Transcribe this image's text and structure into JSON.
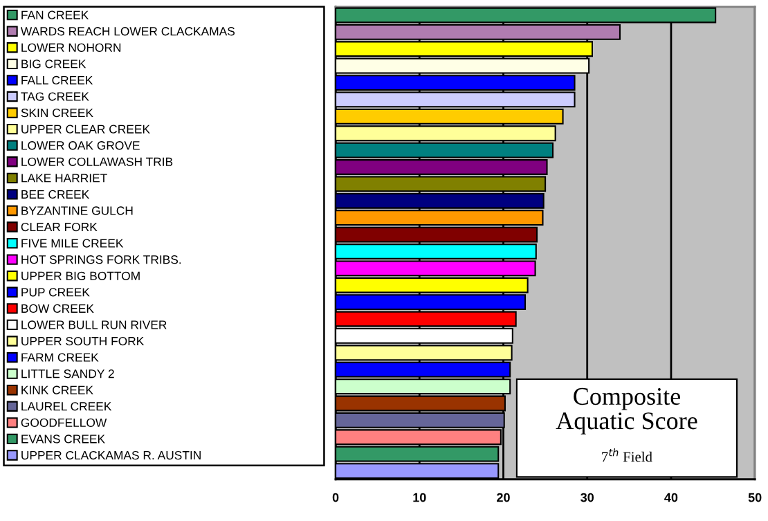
{
  "chart_data": {
    "type": "bar",
    "orientation": "horizontal",
    "title": "Composite Aquatic Score",
    "subtitle": "7$^{th}$ Field",
    "categories": [
      null,
      null,
      null,
      null,
      null,
      null,
      null,
      null,
      null,
      null,
      null,
      null,
      null,
      null,
      null,
      null,
      null,
      null,
      null,
      null,
      null,
      null,
      null,
      null,
      null,
      null,
      null,
      null
    ],
    "series": [
      {
        "name": "FAN CREEK",
        "color": "#339966",
        "values": [
          45.3,
          null,
          null,
          null,
          null,
          null,
          null,
          null,
          null,
          null,
          null,
          null,
          null,
          null,
          null,
          null,
          null,
          null,
          null,
          null,
          null,
          null,
          null,
          null,
          null,
          null,
          null,
          null
        ]
      },
      {
        "name": "WARDS REACH LOWER CLACKAMAS",
        "color": "#b07cb0",
        "values": [
          null,
          33.9,
          null,
          null,
          null,
          null,
          null,
          null,
          null,
          null,
          null,
          null,
          null,
          null,
          null,
          null,
          null,
          null,
          null,
          null,
          null,
          null,
          null,
          null,
          null,
          null,
          null,
          null
        ]
      },
      {
        "name": "LOWER NOHORN",
        "color": "#ffff00",
        "values": [
          null,
          null,
          30.6,
          null,
          null,
          null,
          null,
          null,
          null,
          null,
          null,
          null,
          null,
          null,
          null,
          null,
          null,
          null,
          null,
          null,
          null,
          null,
          null,
          null,
          null,
          null,
          null,
          null
        ]
      },
      {
        "name": "BIG CREEK",
        "color": "#ffffe6",
        "values": [
          null,
          null,
          null,
          30.2,
          null,
          null,
          null,
          null,
          null,
          null,
          null,
          null,
          null,
          null,
          null,
          null,
          null,
          null,
          null,
          null,
          null,
          null,
          null,
          null,
          null,
          null,
          null,
          null
        ]
      },
      {
        "name": "FALL CREEK",
        "color": "#0000ff",
        "values": [
          null,
          null,
          null,
          null,
          28.5,
          null,
          null,
          null,
          null,
          null,
          null,
          null,
          null,
          null,
          null,
          null,
          null,
          null,
          null,
          null,
          null,
          null,
          null,
          null,
          null,
          null,
          null,
          null
        ]
      },
      {
        "name": "TAG CREEK",
        "color": "#ccccff",
        "values": [
          null,
          null,
          null,
          null,
          null,
          28.5,
          null,
          null,
          null,
          null,
          null,
          null,
          null,
          null,
          null,
          null,
          null,
          null,
          null,
          null,
          null,
          null,
          null,
          null,
          null,
          null,
          null,
          null
        ]
      },
      {
        "name": "SKIN CREEK",
        "color": "#ffcc00",
        "values": [
          null,
          null,
          null,
          null,
          null,
          null,
          27.1,
          null,
          null,
          null,
          null,
          null,
          null,
          null,
          null,
          null,
          null,
          null,
          null,
          null,
          null,
          null,
          null,
          null,
          null,
          null,
          null,
          null
        ]
      },
      {
        "name": "UPPER CLEAR CREEK",
        "color": "#ffff99",
        "values": [
          null,
          null,
          null,
          null,
          null,
          null,
          null,
          26.2,
          null,
          null,
          null,
          null,
          null,
          null,
          null,
          null,
          null,
          null,
          null,
          null,
          null,
          null,
          null,
          null,
          null,
          null,
          null,
          null
        ]
      },
      {
        "name": "LOWER OAK GROVE",
        "color": "#008080",
        "values": [
          null,
          null,
          null,
          null,
          null,
          null,
          null,
          null,
          25.9,
          null,
          null,
          null,
          null,
          null,
          null,
          null,
          null,
          null,
          null,
          null,
          null,
          null,
          null,
          null,
          null,
          null,
          null,
          null
        ]
      },
      {
        "name": "LOWER COLLAWASH TRIB",
        "color": "#800080",
        "values": [
          null,
          null,
          null,
          null,
          null,
          null,
          null,
          null,
          null,
          25.2,
          null,
          null,
          null,
          null,
          null,
          null,
          null,
          null,
          null,
          null,
          null,
          null,
          null,
          null,
          null,
          null,
          null,
          null
        ]
      },
      {
        "name": "LAKE HARRIET",
        "color": "#808000",
        "values": [
          null,
          null,
          null,
          null,
          null,
          null,
          null,
          null,
          null,
          null,
          25.0,
          null,
          null,
          null,
          null,
          null,
          null,
          null,
          null,
          null,
          null,
          null,
          null,
          null,
          null,
          null,
          null,
          null
        ]
      },
      {
        "name": "BEE CREEK",
        "color": "#000080",
        "values": [
          null,
          null,
          null,
          null,
          null,
          null,
          null,
          null,
          null,
          null,
          null,
          24.8,
          null,
          null,
          null,
          null,
          null,
          null,
          null,
          null,
          null,
          null,
          null,
          null,
          null,
          null,
          null,
          null
        ]
      },
      {
        "name": "BYZANTINE GULCH",
        "color": "#ff9900",
        "values": [
          null,
          null,
          null,
          null,
          null,
          null,
          null,
          null,
          null,
          null,
          null,
          null,
          24.7,
          null,
          null,
          null,
          null,
          null,
          null,
          null,
          null,
          null,
          null,
          null,
          null,
          null,
          null,
          null
        ]
      },
      {
        "name": "CLEAR FORK",
        "color": "#800000",
        "values": [
          null,
          null,
          null,
          null,
          null,
          null,
          null,
          null,
          null,
          null,
          null,
          null,
          null,
          24.0,
          null,
          null,
          null,
          null,
          null,
          null,
          null,
          null,
          null,
          null,
          null,
          null,
          null,
          null
        ]
      },
      {
        "name": "FIVE MILE CREEK",
        "color": "#00ffff",
        "values": [
          null,
          null,
          null,
          null,
          null,
          null,
          null,
          null,
          null,
          null,
          null,
          null,
          null,
          null,
          23.9,
          null,
          null,
          null,
          null,
          null,
          null,
          null,
          null,
          null,
          null,
          null,
          null,
          null
        ]
      },
      {
        "name": "HOT SPRINGS FORK TRIBS.",
        "color": "#ff00ff",
        "values": [
          null,
          null,
          null,
          null,
          null,
          null,
          null,
          null,
          null,
          null,
          null,
          null,
          null,
          null,
          null,
          23.8,
          null,
          null,
          null,
          null,
          null,
          null,
          null,
          null,
          null,
          null,
          null,
          null
        ]
      },
      {
        "name": "UPPER BIG BOTTOM",
        "color": "#ffff00",
        "values": [
          null,
          null,
          null,
          null,
          null,
          null,
          null,
          null,
          null,
          null,
          null,
          null,
          null,
          null,
          null,
          null,
          22.9,
          null,
          null,
          null,
          null,
          null,
          null,
          null,
          null,
          null,
          null,
          null
        ]
      },
      {
        "name": "PUP CREEK",
        "color": "#0000ff",
        "values": [
          null,
          null,
          null,
          null,
          null,
          null,
          null,
          null,
          null,
          null,
          null,
          null,
          null,
          null,
          null,
          null,
          null,
          22.6,
          null,
          null,
          null,
          null,
          null,
          null,
          null,
          null,
          null,
          null
        ]
      },
      {
        "name": "BOW CREEK",
        "color": "#ff0000",
        "values": [
          null,
          null,
          null,
          null,
          null,
          null,
          null,
          null,
          null,
          null,
          null,
          null,
          null,
          null,
          null,
          null,
          null,
          null,
          21.5,
          null,
          null,
          null,
          null,
          null,
          null,
          null,
          null,
          null
        ]
      },
      {
        "name": "LOWER BULL RUN RIVER",
        "color": "#ffffff",
        "values": [
          null,
          null,
          null,
          null,
          null,
          null,
          null,
          null,
          null,
          null,
          null,
          null,
          null,
          null,
          null,
          null,
          null,
          null,
          null,
          21.1,
          null,
          null,
          null,
          null,
          null,
          null,
          null,
          null
        ]
      },
      {
        "name": "UPPER SOUTH FORK",
        "color": "#ffff99",
        "values": [
          null,
          null,
          null,
          null,
          null,
          null,
          null,
          null,
          null,
          null,
          null,
          null,
          null,
          null,
          null,
          null,
          null,
          null,
          null,
          null,
          21.0,
          null,
          null,
          null,
          null,
          null,
          null,
          null
        ]
      },
      {
        "name": "FARM CREEK",
        "color": "#0000ff",
        "values": [
          null,
          null,
          null,
          null,
          null,
          null,
          null,
          null,
          null,
          null,
          null,
          null,
          null,
          null,
          null,
          null,
          null,
          null,
          null,
          null,
          null,
          20.8,
          null,
          null,
          null,
          null,
          null,
          null
        ]
      },
      {
        "name": "LITTLE SANDY 2",
        "color": "#ccffcc",
        "values": [
          null,
          null,
          null,
          null,
          null,
          null,
          null,
          null,
          null,
          null,
          null,
          null,
          null,
          null,
          null,
          null,
          null,
          null,
          null,
          null,
          null,
          null,
          20.8,
          null,
          null,
          null,
          null,
          null
        ]
      },
      {
        "name": "KINK CREEK",
        "color": "#993300",
        "values": [
          null,
          null,
          null,
          null,
          null,
          null,
          null,
          null,
          null,
          null,
          null,
          null,
          null,
          null,
          null,
          null,
          null,
          null,
          null,
          null,
          null,
          null,
          null,
          20.2,
          null,
          null,
          null,
          null
        ]
      },
      {
        "name": "LAUREL CREEK",
        "color": "#666699",
        "values": [
          null,
          null,
          null,
          null,
          null,
          null,
          null,
          null,
          null,
          null,
          null,
          null,
          null,
          null,
          null,
          null,
          null,
          null,
          null,
          null,
          null,
          null,
          null,
          null,
          20.1,
          null,
          null,
          null
        ]
      },
      {
        "name": "GOODFELLOW",
        "color": "#ff8080",
        "values": [
          null,
          null,
          null,
          null,
          null,
          null,
          null,
          null,
          null,
          null,
          null,
          null,
          null,
          null,
          null,
          null,
          null,
          null,
          null,
          null,
          null,
          null,
          null,
          null,
          null,
          19.7,
          null,
          null
        ]
      },
      {
        "name": "EVANS CREEK",
        "color": "#339966",
        "values": [
          null,
          null,
          null,
          null,
          null,
          null,
          null,
          null,
          null,
          null,
          null,
          null,
          null,
          null,
          null,
          null,
          null,
          null,
          null,
          null,
          null,
          null,
          null,
          null,
          null,
          null,
          19.4,
          null
        ]
      },
      {
        "name": "UPPER CLACKAMAS R. AUSTIN",
        "color": "#9999ff",
        "values": [
          null,
          null,
          null,
          null,
          null,
          null,
          null,
          null,
          null,
          null,
          null,
          null,
          null,
          null,
          null,
          null,
          null,
          null,
          null,
          null,
          null,
          null,
          null,
          null,
          null,
          null,
          null,
          19.4
        ]
      }
    ],
    "xlim": [
      0,
      50
    ],
    "xticks": [
      0,
      10,
      20,
      30,
      40,
      50
    ],
    "grid": "x",
    "legend": "left",
    "tick_labels": "x"
  }
}
